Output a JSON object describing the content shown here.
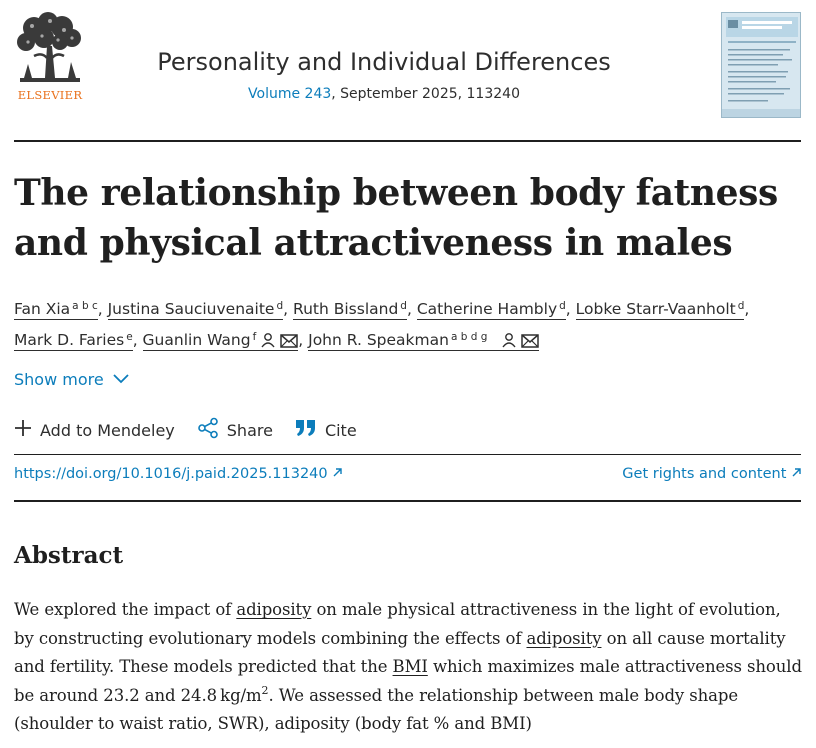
{
  "publisher": {
    "name": "ELSEVIER",
    "logo_icon": "elsevier-tree-logo-icon"
  },
  "journal": {
    "title": "Personality and Individual Differences",
    "volume_link": "Volume 243",
    "issue_rest": ", September 2025, 113240",
    "cover_icon": "journal-cover-thumbnail"
  },
  "article": {
    "title": "The relationship between body fatness and physical attractiveness in males"
  },
  "authors": [
    {
      "name": "Fan Xia",
      "sup": "a b c"
    },
    {
      "name": "Justina Sauciuvenaite",
      "sup": "d"
    },
    {
      "name": "Ruth Bissland",
      "sup": "d"
    },
    {
      "name": "Catherine Hambly",
      "sup": "d"
    },
    {
      "name": "Lobke Starr-Vaanholt",
      "sup": "d"
    },
    {
      "name": "Mark D. Faries",
      "sup": "e"
    },
    {
      "name": "Guanlin Wang",
      "sup": "f"
    },
    {
      "name": "John R. Speakman",
      "sup": "a b d g"
    }
  ],
  "show_more": {
    "label": "Show more",
    "icon": "chevron-down-icon"
  },
  "actions": {
    "mendeley": {
      "label": "Add to Mendeley",
      "icon": "plus-icon"
    },
    "share": {
      "label": "Share",
      "icon": "share-icon"
    },
    "cite": {
      "label": "Cite",
      "icon": "quote-icon"
    }
  },
  "links": {
    "doi": "https://doi.org/10.1016/j.paid.2025.113240",
    "rights": "Get rights and content",
    "external_icon": "external-link-arrow-icon"
  },
  "abstract": {
    "heading": "Abstract",
    "p1": "We explored the impact of ",
    "link1": "adiposity",
    "p2": " on male physical attractiveness in the light of evolution, by constructing evolutionary models combining the effects of ",
    "link2": "adiposity",
    "p3": " on all cause mortality and fertility. These models predicted that the ",
    "link3": "BMI",
    "p4": " which maximizes male attractiveness should be around 23.2 and 24.8 kg/m",
    "p4_sup": "2",
    "p5": ". We assessed the relationship between male body shape (shoulder to waist ratio, SWR), adiposity (body fat % and BMI)"
  },
  "colors": {
    "link": "#0c7dbb",
    "publisher_orange": "#e9711c",
    "text": "#1f1f1f"
  }
}
